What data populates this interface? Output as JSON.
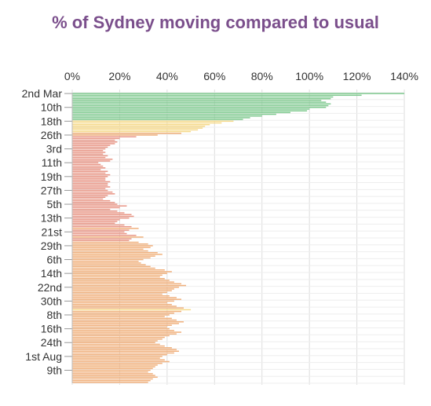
{
  "title": "% of Sydney moving compared to usual",
  "chart_data": {
    "type": "bar",
    "orientation": "horizontal",
    "title": "% of Sydney moving compared to usual",
    "xlabel": "",
    "ylabel": "",
    "xlim": [
      0,
      140
    ],
    "x_ticks": [
      "0%",
      "20%",
      "40%",
      "60%",
      "80%",
      "100%",
      "120%",
      "140%"
    ],
    "y_tick_labels": [
      "2nd Mar",
      "10th",
      "18th",
      "26th",
      "3rd",
      "11th",
      "19th",
      "27th",
      "5th",
      "13th",
      "21st",
      "29th",
      "6th",
      "14th",
      "22nd",
      "30th",
      "8th",
      "16th",
      "24th",
      "1st Aug",
      "9th"
    ],
    "y_tick_indices": [
      0,
      8,
      16,
      24,
      32,
      40,
      48,
      56,
      64,
      72,
      80,
      88,
      96,
      104,
      112,
      120,
      128,
      136,
      144,
      152,
      160
    ],
    "grid": true,
    "colors": {
      "green": "#7fc98f",
      "yellow": "#f5d98a",
      "orange": "#f0b07c",
      "red": "#e89686"
    },
    "values": [
      140,
      122,
      110,
      109,
      105,
      107,
      109,
      108,
      107,
      100,
      99,
      92,
      86,
      80,
      75,
      72,
      68,
      63,
      58,
      56,
      55,
      53,
      50,
      46,
      36,
      27,
      20,
      18,
      19,
      18,
      16,
      15,
      14,
      13,
      14,
      13,
      15,
      14,
      17,
      16,
      11,
      12,
      13,
      14,
      12,
      15,
      14,
      16,
      15,
      14,
      14,
      16,
      15,
      15,
      16,
      14,
      15,
      17,
      18,
      15,
      14,
      13,
      16,
      18,
      19,
      23,
      20,
      16,
      19,
      22,
      25,
      26,
      24,
      20,
      19,
      18,
      22,
      25,
      28,
      24,
      22,
      23,
      27,
      30,
      25,
      24,
      28,
      32,
      34,
      33,
      30,
      32,
      36,
      38,
      35,
      33,
      30,
      28,
      29,
      31,
      33,
      35,
      39,
      42,
      40,
      38,
      37,
      39,
      41,
      43,
      46,
      48,
      45,
      43,
      42,
      40,
      38,
      41,
      44,
      46,
      43,
      40,
      42,
      44,
      47,
      50,
      46,
      43,
      41,
      39,
      42,
      44,
      47,
      45,
      42,
      40,
      41,
      43,
      46,
      44,
      41,
      39,
      38,
      36,
      35,
      37,
      39,
      42,
      44,
      45,
      43,
      40,
      38,
      37,
      39,
      41,
      38,
      36,
      35,
      34,
      33,
      32,
      34,
      35,
      36,
      34,
      33,
      32
    ]
  }
}
